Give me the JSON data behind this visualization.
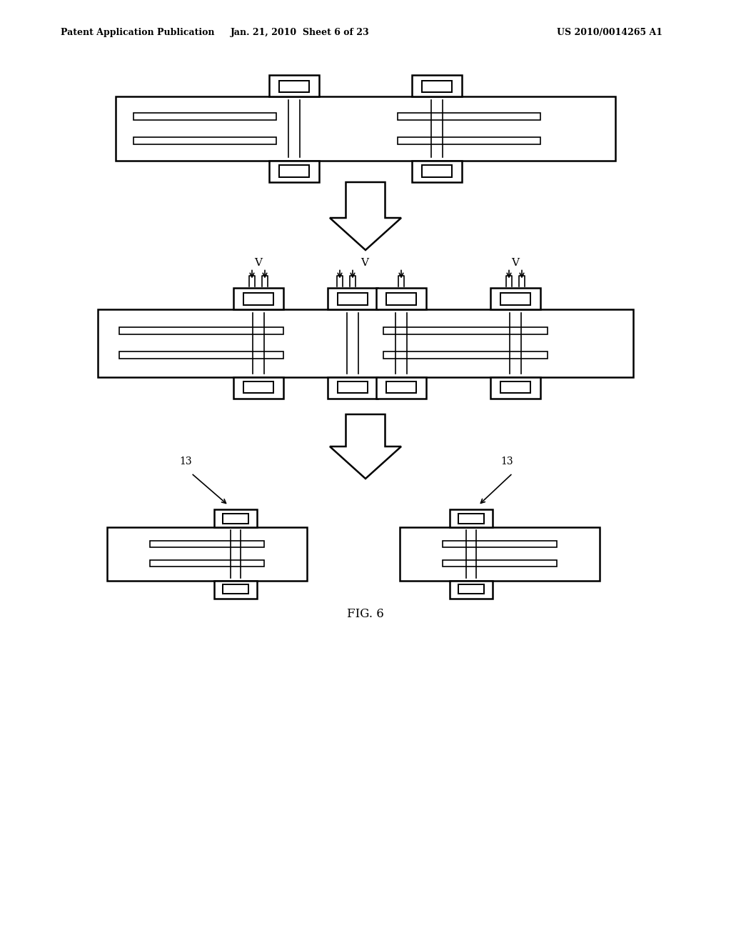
{
  "bg_color": "#ffffff",
  "header_left": "Patent Application Publication",
  "header_mid": "Jan. 21, 2010  Sheet 6 of 23",
  "header_right": "US 2010/0014265 A1",
  "fig_label": "FIG. 6",
  "lw": 1.8,
  "thin_lw": 1.2
}
